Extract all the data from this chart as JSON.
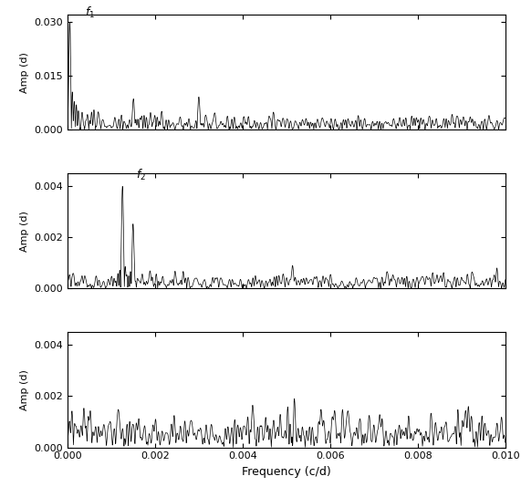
{
  "title": "",
  "xlabel": "Frequency (c/d)",
  "ylabel": "Amp (d)",
  "xlim": [
    0.0,
    0.01
  ],
  "panel1_ylim": [
    0.0,
    0.032
  ],
  "panel2_ylim": [
    0.0,
    0.0045
  ],
  "panel3_ylim": [
    0.0,
    0.0045
  ],
  "panel1_yticks": [
    0.0,
    0.015,
    0.03
  ],
  "panel2_yticks": [
    0.0,
    0.002,
    0.004
  ],
  "panel3_yticks": [
    0.0,
    0.002,
    0.004
  ],
  "f1_freq": 4.24e-05,
  "f1_amp": 0.03,
  "f2_freq": 0.00149,
  "f2_amp": 0.004,
  "f1_label": "f$_1$",
  "f2_label": "f$_2$",
  "line_color": "#000000",
  "bg_color": "#ffffff",
  "nfreq": 3000
}
